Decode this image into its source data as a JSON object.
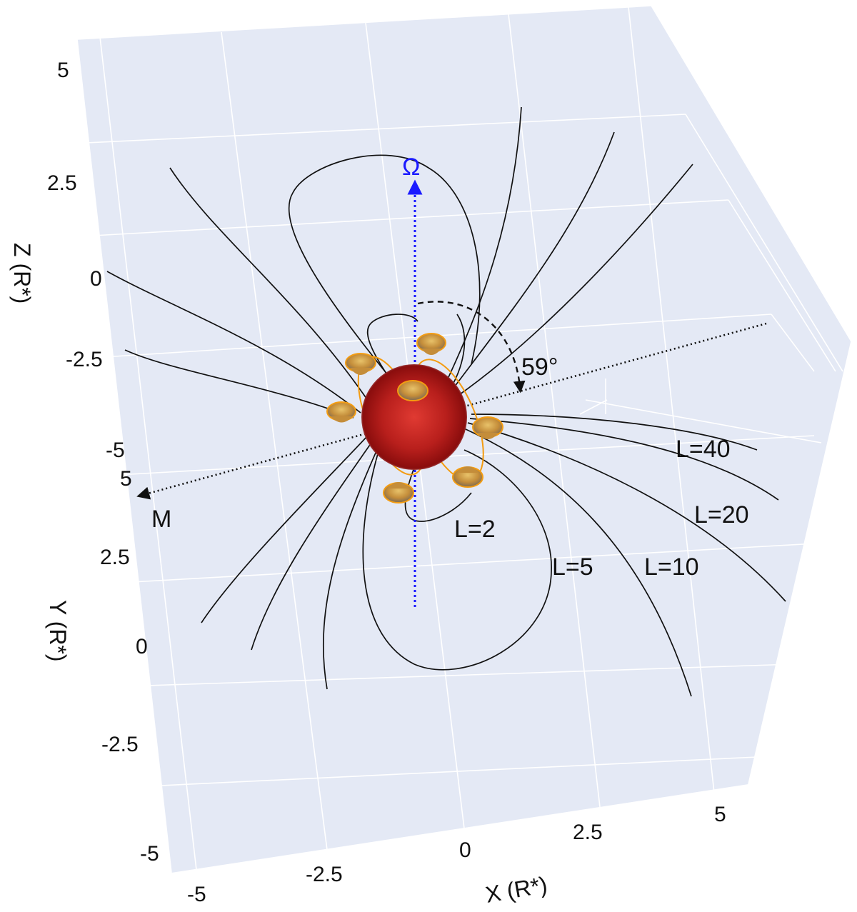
{
  "axes": {
    "z": {
      "title": "Z (R*)",
      "ticks": [
        "5",
        "2.5",
        "0",
        "-2.5",
        "-5"
      ]
    },
    "y": {
      "title": "Y (R*)",
      "ticks": [
        "5",
        "2.5",
        "0",
        "-2.5",
        "-5"
      ]
    },
    "x": {
      "title": "X (R*)",
      "ticks": [
        "-5",
        "-2.5",
        "0",
        "2.5",
        "5"
      ]
    }
  },
  "labels": {
    "rotation_axis": "Ω",
    "magnetic_axis": "M",
    "obliquity": "59°",
    "shells": [
      "L=2",
      "L=5",
      "L=10",
      "L=20",
      "L=40"
    ]
  },
  "colors": {
    "pane": "#e4e9f5",
    "grid": "#ffffff",
    "rotation_axis": "#1a1aff",
    "star_center": "#e03a32",
    "star_edge": "#8a0d0d",
    "ring": "#f39c12",
    "blob": "#c48d3a"
  }
}
